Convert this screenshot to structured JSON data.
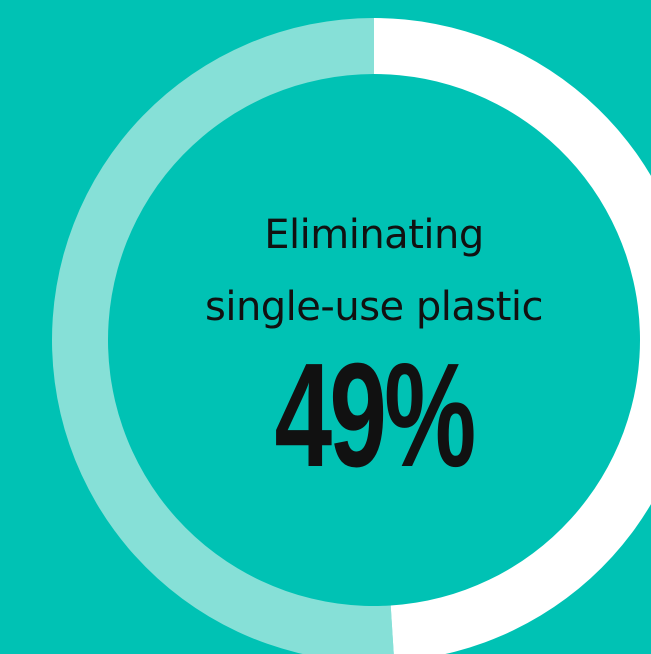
{
  "chart_data": {
    "type": "pie",
    "variant": "donut",
    "labels": [
      "Eliminating",
      "single-use plastic"
    ],
    "values": [
      49,
      51
    ],
    "value_text": "49%",
    "highlight_color": "#ffffff",
    "remainder_color": "#86e0d7",
    "background_color": "#00c2b4",
    "text_color": "#111111"
  }
}
